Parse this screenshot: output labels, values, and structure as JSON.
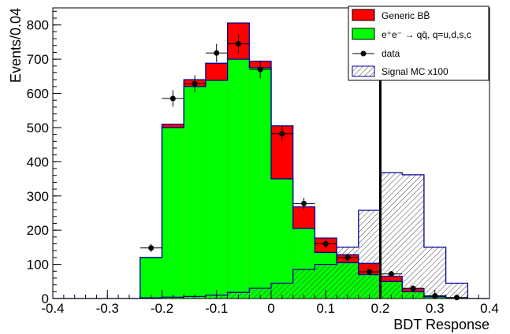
{
  "chart_data": {
    "type": "bar",
    "xlabel": "BDT Response",
    "ylabel": "Events/0.04",
    "xlim": [
      -0.4,
      0.4
    ],
    "ylim": [
      0,
      850
    ],
    "bin_width": 0.04,
    "bin_lo": [
      -0.24,
      -0.2,
      -0.16,
      -0.12,
      -0.08,
      -0.04,
      0.0,
      0.04,
      0.08,
      0.12,
      0.16,
      0.2,
      0.24,
      0.28,
      0.32
    ],
    "x_ticks": [
      "-0.4",
      "-0.3",
      "-0.2",
      "-0.1",
      "0",
      "0.1",
      "0.2",
      "0.3",
      "0.4"
    ],
    "x_tick_values": [
      -0.4,
      -0.3,
      -0.2,
      -0.1,
      0,
      0.1,
      0.2,
      0.3,
      0.4
    ],
    "y_ticks": [
      "0",
      "100",
      "200",
      "300",
      "400",
      "500",
      "600",
      "700",
      "800"
    ],
    "y_tick_values": [
      0,
      100,
      200,
      300,
      400,
      500,
      600,
      700,
      800
    ],
    "cut_value": 0.2,
    "series": [
      {
        "name": "Generic BB̄",
        "color": "#ff0000",
        "values": [
          120,
          510,
          640,
          688,
          806,
          694,
          505,
          268,
          177,
          128,
          103,
          65,
          29,
          7,
          2
        ]
      },
      {
        "name": "e⁺e⁻ → qq̄, q=u,d,s,c",
        "color": "#00ff00",
        "values": [
          120,
          500,
          620,
          638,
          700,
          675,
          350,
          205,
          135,
          105,
          70,
          50,
          20,
          5,
          1
        ]
      },
      {
        "name": "data",
        "color": "#000000",
        "x": [
          -0.22,
          -0.18,
          -0.14,
          -0.1,
          -0.06,
          -0.02,
          0.02,
          0.06,
          0.1,
          0.14,
          0.18,
          0.22,
          0.26,
          0.3,
          0.34
        ],
        "values": [
          148,
          585,
          628,
          718,
          745,
          670,
          482,
          278,
          160,
          120,
          78,
          72,
          30,
          8,
          3
        ]
      },
      {
        "name": "Signal MC x100",
        "color": "#000099",
        "values": [
          2,
          4,
          6,
          10,
          18,
          30,
          45,
          85,
          100,
          150,
          258,
          368,
          362,
          150,
          45
        ]
      }
    ],
    "legend": {
      "position": "top-right",
      "entries": [
        "Generic BB̄",
        "e⁺e⁻ → qq̄, q=u,d,s,c",
        "data",
        "Signal MC x100"
      ]
    },
    "grid": false
  }
}
